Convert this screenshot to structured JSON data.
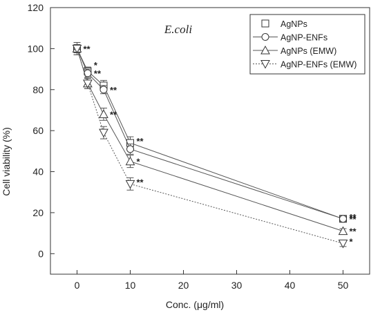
{
  "chart_data": {
    "type": "line",
    "title": "E.coli",
    "xlabel": "Conc. (μg/ml)",
    "ylabel": "Cell viability (%)",
    "xlim": [
      -5,
      55
    ],
    "ylim": [
      -10,
      120
    ],
    "xticks": [
      0,
      10,
      20,
      30,
      40,
      50
    ],
    "yticks": [
      0,
      20,
      40,
      60,
      80,
      100,
      120
    ],
    "grid": false,
    "legend_position": "top-right",
    "x": [
      0,
      2,
      5,
      10,
      50
    ],
    "series": [
      {
        "name": "AgNPs",
        "marker": "square",
        "linestyle": "solid",
        "values": [
          100,
          89,
          82,
          54,
          17
        ],
        "errors": [
          2,
          2,
          2.5,
          3,
          1.5
        ]
      },
      {
        "name": "AgNP-ENFs",
        "marker": "circle",
        "linestyle": "solid",
        "values": [
          100,
          88,
          80,
          51,
          17
        ],
        "errors": [
          2,
          2,
          2,
          2.5,
          1.5
        ]
      },
      {
        "name": "AgNPs (EMW)",
        "marker": "triangle-up",
        "linestyle": "solid",
        "values": [
          100,
          83,
          68,
          45,
          11
        ],
        "errors": [
          3,
          2.5,
          3,
          3,
          1.2
        ]
      },
      {
        "name": "AgNP-ENFs (EMW)",
        "marker": "triangle-down",
        "linestyle": "dotted",
        "values": [
          100,
          83,
          59,
          34,
          5
        ],
        "errors": [
          3,
          2.5,
          3,
          3,
          1.5
        ]
      }
    ],
    "annotations": [
      {
        "x": 0,
        "y": 100,
        "text": "**"
      },
      {
        "x": 2,
        "y": 92,
        "text": "*"
      },
      {
        "x": 2,
        "y": 88,
        "text": "**"
      },
      {
        "x": 5,
        "y": 80,
        "text": "**"
      },
      {
        "x": 5,
        "y": 68,
        "text": "**"
      },
      {
        "x": 10,
        "y": 55,
        "text": "**"
      },
      {
        "x": 10,
        "y": 45,
        "text": "*"
      },
      {
        "x": 10,
        "y": 35,
        "text": "**"
      },
      {
        "x": 50,
        "y": 18,
        "text": "**"
      },
      {
        "x": 50,
        "y": 17,
        "text": "**"
      },
      {
        "x": 50,
        "y": 11,
        "text": "**"
      },
      {
        "x": 50,
        "y": 6,
        "text": "*"
      }
    ]
  }
}
